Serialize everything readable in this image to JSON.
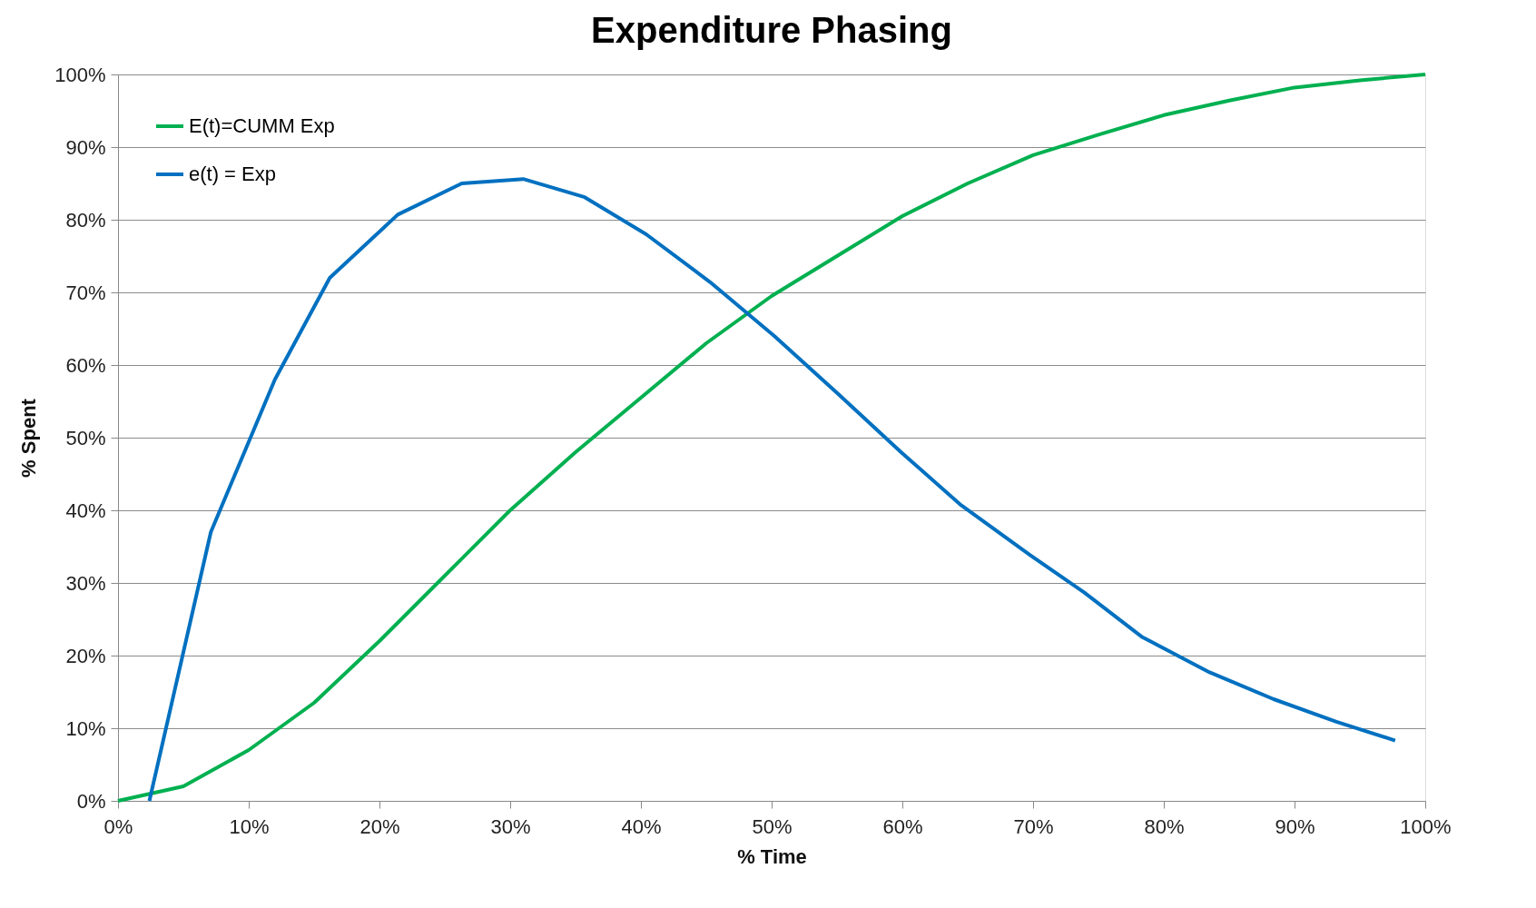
{
  "chart_data": {
    "type": "line",
    "title": "Expenditure Phasing",
    "xlabel": "% Time",
    "ylabel": "% Spent",
    "xlim": [
      0,
      100
    ],
    "ylim": [
      0,
      100
    ],
    "xticks": [
      {
        "value": 0,
        "label": "0%"
      },
      {
        "value": 10,
        "label": "10%"
      },
      {
        "value": 20,
        "label": "20%"
      },
      {
        "value": 30,
        "label": "30%"
      },
      {
        "value": 40,
        "label": "40%"
      },
      {
        "value": 50,
        "label": "50%"
      },
      {
        "value": 60,
        "label": "60%"
      },
      {
        "value": 70,
        "label": "70%"
      },
      {
        "value": 80,
        "label": "80%"
      },
      {
        "value": 90,
        "label": "90%"
      },
      {
        "value": 100,
        "label": "100%"
      }
    ],
    "yticks": [
      {
        "value": 0,
        "label": "0%"
      },
      {
        "value": 10,
        "label": "10%"
      },
      {
        "value": 20,
        "label": "20%"
      },
      {
        "value": 30,
        "label": "30%"
      },
      {
        "value": 40,
        "label": "40%"
      },
      {
        "value": 50,
        "label": "50%"
      },
      {
        "value": 60,
        "label": "60%"
      },
      {
        "value": 70,
        "label": "70%"
      },
      {
        "value": 80,
        "label": "80%"
      },
      {
        "value": 90,
        "label": "90%"
      },
      {
        "value": 100,
        "label": "100%"
      }
    ],
    "grid": "y",
    "legend": "top left",
    "marker": "none",
    "line_style": "solid",
    "series": [
      {
        "name": "E(t)=CUMM Exp",
        "color": "#00b050",
        "x": [
          0,
          5,
          10,
          15,
          20,
          25,
          30,
          35,
          40,
          45,
          50,
          55,
          60,
          65,
          70,
          75,
          80,
          85,
          90,
          95,
          100
        ],
        "values": [
          0,
          2,
          7,
          13.5,
          22,
          31,
          40,
          48,
          55.5,
          63,
          69.5,
          75,
          80.5,
          85,
          88.9,
          91.7,
          94.4,
          96.4,
          98.2,
          99.2,
          100
        ]
      },
      {
        "name": "e(t) = Exp",
        "color": "#0070c0",
        "x": [
          2.4,
          7.1,
          12,
          16.2,
          21.4,
          26.3,
          31,
          35.7,
          40.4,
          45.3,
          50.2,
          55.1,
          59.9,
          64.5,
          69.8,
          73.9,
          78.3,
          83.5,
          88.4,
          93.2,
          97.7
        ],
        "values": [
          0,
          37,
          58,
          72,
          80.7,
          85,
          85.6,
          83.1,
          78,
          71.4,
          64,
          56,
          48,
          40.7,
          33.8,
          28.7,
          22.6,
          17.7,
          14,
          10.9,
          8.3
        ]
      }
    ]
  }
}
